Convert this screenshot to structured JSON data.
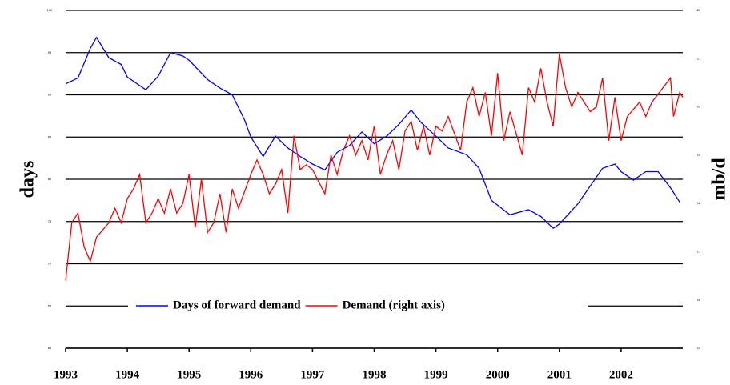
{
  "chart_data": {
    "type": "line",
    "ylabel": "days",
    "y2label": "mb/d",
    "xlim": [
      1993,
      2003
    ],
    "xticks": [
      1993,
      1994,
      1995,
      1996,
      1997,
      1998,
      1999,
      2000,
      2001,
      2002
    ],
    "ylim": [
      60,
      100
    ],
    "yticks": [
      60,
      65,
      70,
      75,
      80,
      85,
      90,
      95,
      100
    ],
    "y2lim": [
      15,
      22
    ],
    "y2ticks": [
      15,
      16,
      17,
      18,
      19,
      20,
      21,
      22
    ],
    "grid": true,
    "legend": "bottom",
    "series": [
      {
        "name": "Days of forward demand",
        "color": "#0000ff",
        "x": [
          1993.0,
          1993.2,
          1993.4,
          1993.5,
          1993.7,
          1993.9,
          1994.0,
          1994.3,
          1994.5,
          1994.7,
          1994.9,
          1995.0,
          1995.3,
          1995.5,
          1995.7,
          1995.9,
          1996.0,
          1996.2,
          1996.4,
          1996.6,
          1996.8,
          1997.0,
          1997.2,
          1997.4,
          1997.6,
          1997.8,
          1998.0,
          1998.2,
          1998.4,
          1998.6,
          1998.75,
          1999.0,
          1999.2,
          1999.5,
          1999.7,
          1999.9,
          2000.2,
          2000.5,
          2000.7,
          2000.9,
          2001.0,
          2001.3,
          2001.5,
          2001.7,
          2001.9,
          2002.0,
          2002.2,
          2002.4,
          2002.6,
          2002.8,
          2002.95
        ],
        "values": [
          91.3,
          92,
          95.5,
          96.8,
          94.4,
          93.6,
          92.1,
          90.6,
          92.2,
          95,
          94.6,
          94.1,
          91.8,
          90.8,
          90,
          87,
          85,
          82.7,
          85.1,
          83.7,
          82.7,
          81.8,
          81.1,
          83.2,
          84,
          85.6,
          84.2,
          85.1,
          86.5,
          88.2,
          86.8,
          85.1,
          83.7,
          82.9,
          81.3,
          77.5,
          75.8,
          76.4,
          75.6,
          74.2,
          74.7,
          77.1,
          79.2,
          81.3,
          81.8,
          80.9,
          79.9,
          80.9,
          80.9,
          79,
          77.3
        ]
      },
      {
        "name": "Demand (right axis)",
        "color": "#ff0000",
        "axis": "y2",
        "x": [
          1993.0,
          1993.1,
          1993.2,
          1993.3,
          1993.4,
          1993.5,
          1993.7,
          1993.8,
          1993.9,
          1994.0,
          1994.1,
          1994.2,
          1994.3,
          1994.4,
          1994.5,
          1994.6,
          1994.7,
          1994.8,
          1994.9,
          1995.0,
          1995.1,
          1995.2,
          1995.3,
          1995.4,
          1995.5,
          1995.6,
          1995.7,
          1995.8,
          1996.0,
          1996.1,
          1996.2,
          1996.3,
          1996.4,
          1996.5,
          1996.6,
          1996.7,
          1996.8,
          1996.9,
          1997.0,
          1997.2,
          1997.3,
          1997.4,
          1997.5,
          1997.6,
          1997.7,
          1997.8,
          1997.9,
          1998.0,
          1998.1,
          1998.2,
          1998.3,
          1998.4,
          1998.5,
          1998.6,
          1998.7,
          1998.8,
          1998.9,
          1999.0,
          1999.1,
          1999.2,
          1999.4,
          1999.5,
          1999.6,
          1999.7,
          1999.8,
          1999.9,
          2000.0,
          2000.1,
          2000.2,
          2000.4,
          2000.5,
          2000.6,
          2000.7,
          2000.8,
          2000.9,
          2001.0,
          2001.1,
          2001.2,
          2001.3,
          2001.5,
          2001.6,
          2001.7,
          2001.8,
          2001.9,
          2002.0,
          2002.1,
          2002.3,
          2002.4,
          2002.5,
          2002.8,
          2002.85,
          2002.95,
          2003.0
        ],
        "values": [
          16.4,
          17.6,
          17.8,
          17.1,
          16.8,
          17.3,
          17.6,
          17.9,
          17.6,
          18.1,
          18.3,
          18.6,
          17.6,
          17.8,
          18.1,
          17.8,
          18.3,
          17.8,
          18.0,
          18.6,
          17.5,
          18.5,
          17.4,
          17.6,
          18.2,
          17.4,
          18.3,
          17.9,
          18.6,
          18.9,
          18.6,
          18.2,
          18.4,
          18.7,
          17.8,
          19.4,
          18.7,
          18.8,
          18.7,
          18.2,
          19,
          18.6,
          19.1,
          19.4,
          19.0,
          19.3,
          18.9,
          19.6,
          18.6,
          19.0,
          19.3,
          18.7,
          19.5,
          19.7,
          19.1,
          19.6,
          19.0,
          19.6,
          19.5,
          19.8,
          19.1,
          20.1,
          20.4,
          19.8,
          20.3,
          19.4,
          20.7,
          19.3,
          19.9,
          19,
          20.4,
          20.1,
          20.8,
          20.1,
          19.6,
          21.1,
          20.4,
          20,
          20.3,
          19.9,
          20,
          20.6,
          19.3,
          20.2,
          19.3,
          19.8,
          20.1,
          19.8,
          20.1,
          20.6,
          19.8,
          20.3,
          20.2
        ]
      }
    ]
  }
}
